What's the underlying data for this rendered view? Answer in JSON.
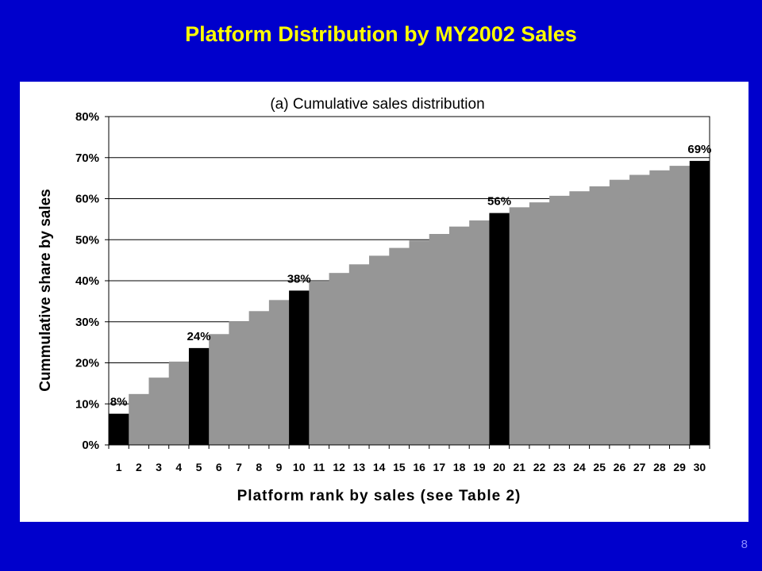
{
  "slide": {
    "title": "Platform Distribution by MY2002 Sales",
    "page_number": "8"
  },
  "colors": {
    "background": "#0000cc",
    "title": "#ffff00",
    "highlight_bar": "#000000",
    "regular_bar": "#969696",
    "plot_area": "#ffffff"
  },
  "chart_data": {
    "type": "bar",
    "title": "(a) Cumulative sales distribution",
    "xlabel": "Platform rank by sales (see Table 2)",
    "ylabel": "Cummulative share by sales",
    "categories": [
      "1",
      "2",
      "3",
      "4",
      "5",
      "6",
      "7",
      "8",
      "9",
      "10",
      "11",
      "12",
      "13",
      "14",
      "15",
      "16",
      "17",
      "18",
      "19",
      "20",
      "21",
      "22",
      "23",
      "24",
      "25",
      "26",
      "27",
      "28",
      "29",
      "30"
    ],
    "values": [
      7.6,
      12.4,
      16.4,
      20.3,
      23.6,
      27.0,
      30.1,
      32.6,
      35.3,
      37.6,
      39.8,
      41.9,
      44.0,
      46.1,
      48.0,
      49.8,
      51.4,
      53.2,
      54.7,
      56.5,
      57.9,
      59.1,
      60.7,
      61.8,
      63.0,
      64.6,
      65.8,
      66.9,
      68.0,
      69.2
    ],
    "highlighted": [
      "1",
      "5",
      "10",
      "20",
      "30"
    ],
    "data_labels": [
      {
        "category": "1",
        "text": "8%"
      },
      {
        "category": "5",
        "text": "24%"
      },
      {
        "category": "10",
        "text": "38%"
      },
      {
        "category": "20",
        "text": "56%"
      },
      {
        "category": "30",
        "text": "69%"
      }
    ],
    "ylim": [
      0,
      80
    ],
    "y_ticks": [
      "0%",
      "10%",
      "20%",
      "30%",
      "40%",
      "50%",
      "60%",
      "70%",
      "80%"
    ],
    "grid": true
  }
}
